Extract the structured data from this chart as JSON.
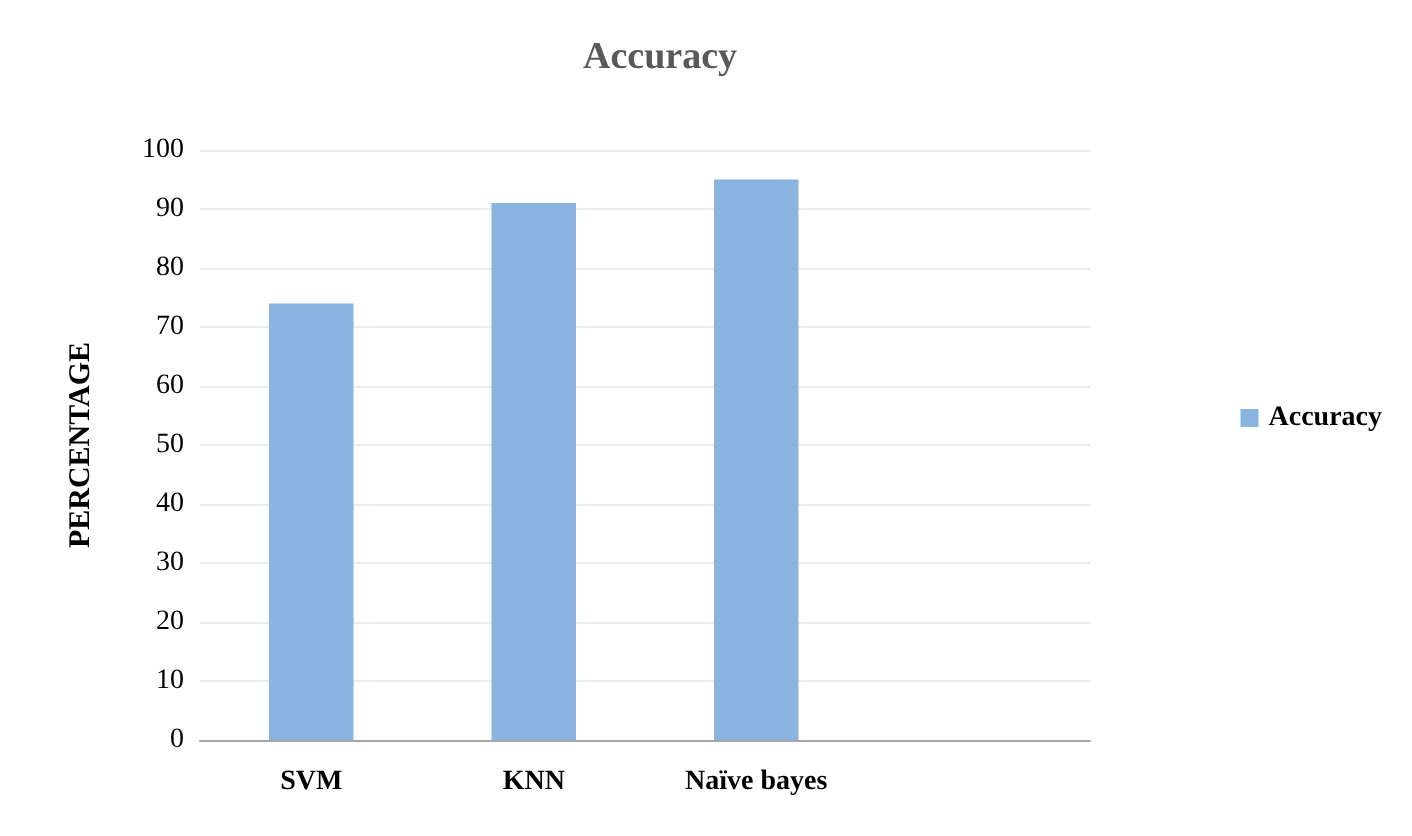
{
  "chart_data": {
    "type": "bar",
    "title": "Accuracy",
    "ylabel": "PERCENTAGE",
    "categories": [
      "SVM",
      "KNN",
      "Naïve bayes",
      null
    ],
    "series": [
      {
        "name": "Accuracy",
        "color": "#8ab4e0",
        "values": [
          74,
          91,
          95,
          null
        ]
      }
    ],
    "ylim": [
      0,
      100
    ],
    "yticks": [
      0,
      10,
      20,
      30,
      40,
      50,
      60,
      70,
      80,
      90,
      100
    ],
    "grid": "y",
    "legend": "right"
  }
}
